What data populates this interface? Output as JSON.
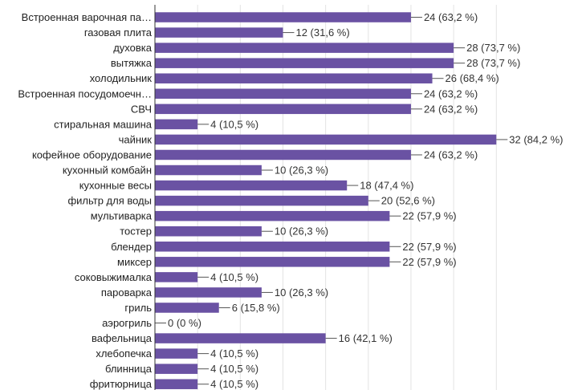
{
  "chart_data": {
    "type": "bar",
    "orientation": "horizontal",
    "title": "",
    "xlabel": "",
    "ylabel": "",
    "grid": true,
    "xlim": [
      0,
      35
    ],
    "bar_color": "#6a52a3",
    "categories": [
      "Встроенная варочная па…",
      "газовая плита",
      "духовка",
      "вытяжка",
      "холодильник",
      "Встроенная посудомоечн…",
      "СВЧ",
      "стиральная машина",
      "чайник",
      "кофейное оборудование",
      "кухонный комбайн",
      "кухонные весы",
      "фильтр для воды",
      "мультиварка",
      "тостер",
      "блендер",
      "миксер",
      "соковыжималка",
      "пароварка",
      "гриль",
      "аэрогриль",
      "вафельница",
      "хлебопечка",
      "блинница",
      "фритюрница"
    ],
    "values": [
      24,
      12,
      28,
      28,
      26,
      24,
      24,
      4,
      32,
      24,
      10,
      18,
      20,
      22,
      10,
      22,
      22,
      4,
      10,
      6,
      0,
      16,
      4,
      4,
      4
    ],
    "data_labels": [
      "24 (63,2 %)",
      "12 (31,6 %)",
      "28 (73,7 %)",
      "28 (73,7 %)",
      "26 (68,4 %)",
      "24 (63,2 %)",
      "24 (63,2 %)",
      "4 (10,5 %)",
      "32 (84,2 %)",
      "24 (63,2 %)",
      "10 (26,3 %)",
      "18 (47,4 %)",
      "20 (52,6 %)",
      "22 (57,9 %)",
      "10 (26,3 %)",
      "22 (57,9 %)",
      "22 (57,9 %)",
      "4 (10,5 %)",
      "10 (26,3 %)",
      "6 (15,8 %)",
      "0 (0 %)",
      "16 (42,1 %)",
      "4 (10,5 %)",
      "4 (10,5 %)",
      "4 (10,5 %)"
    ]
  }
}
